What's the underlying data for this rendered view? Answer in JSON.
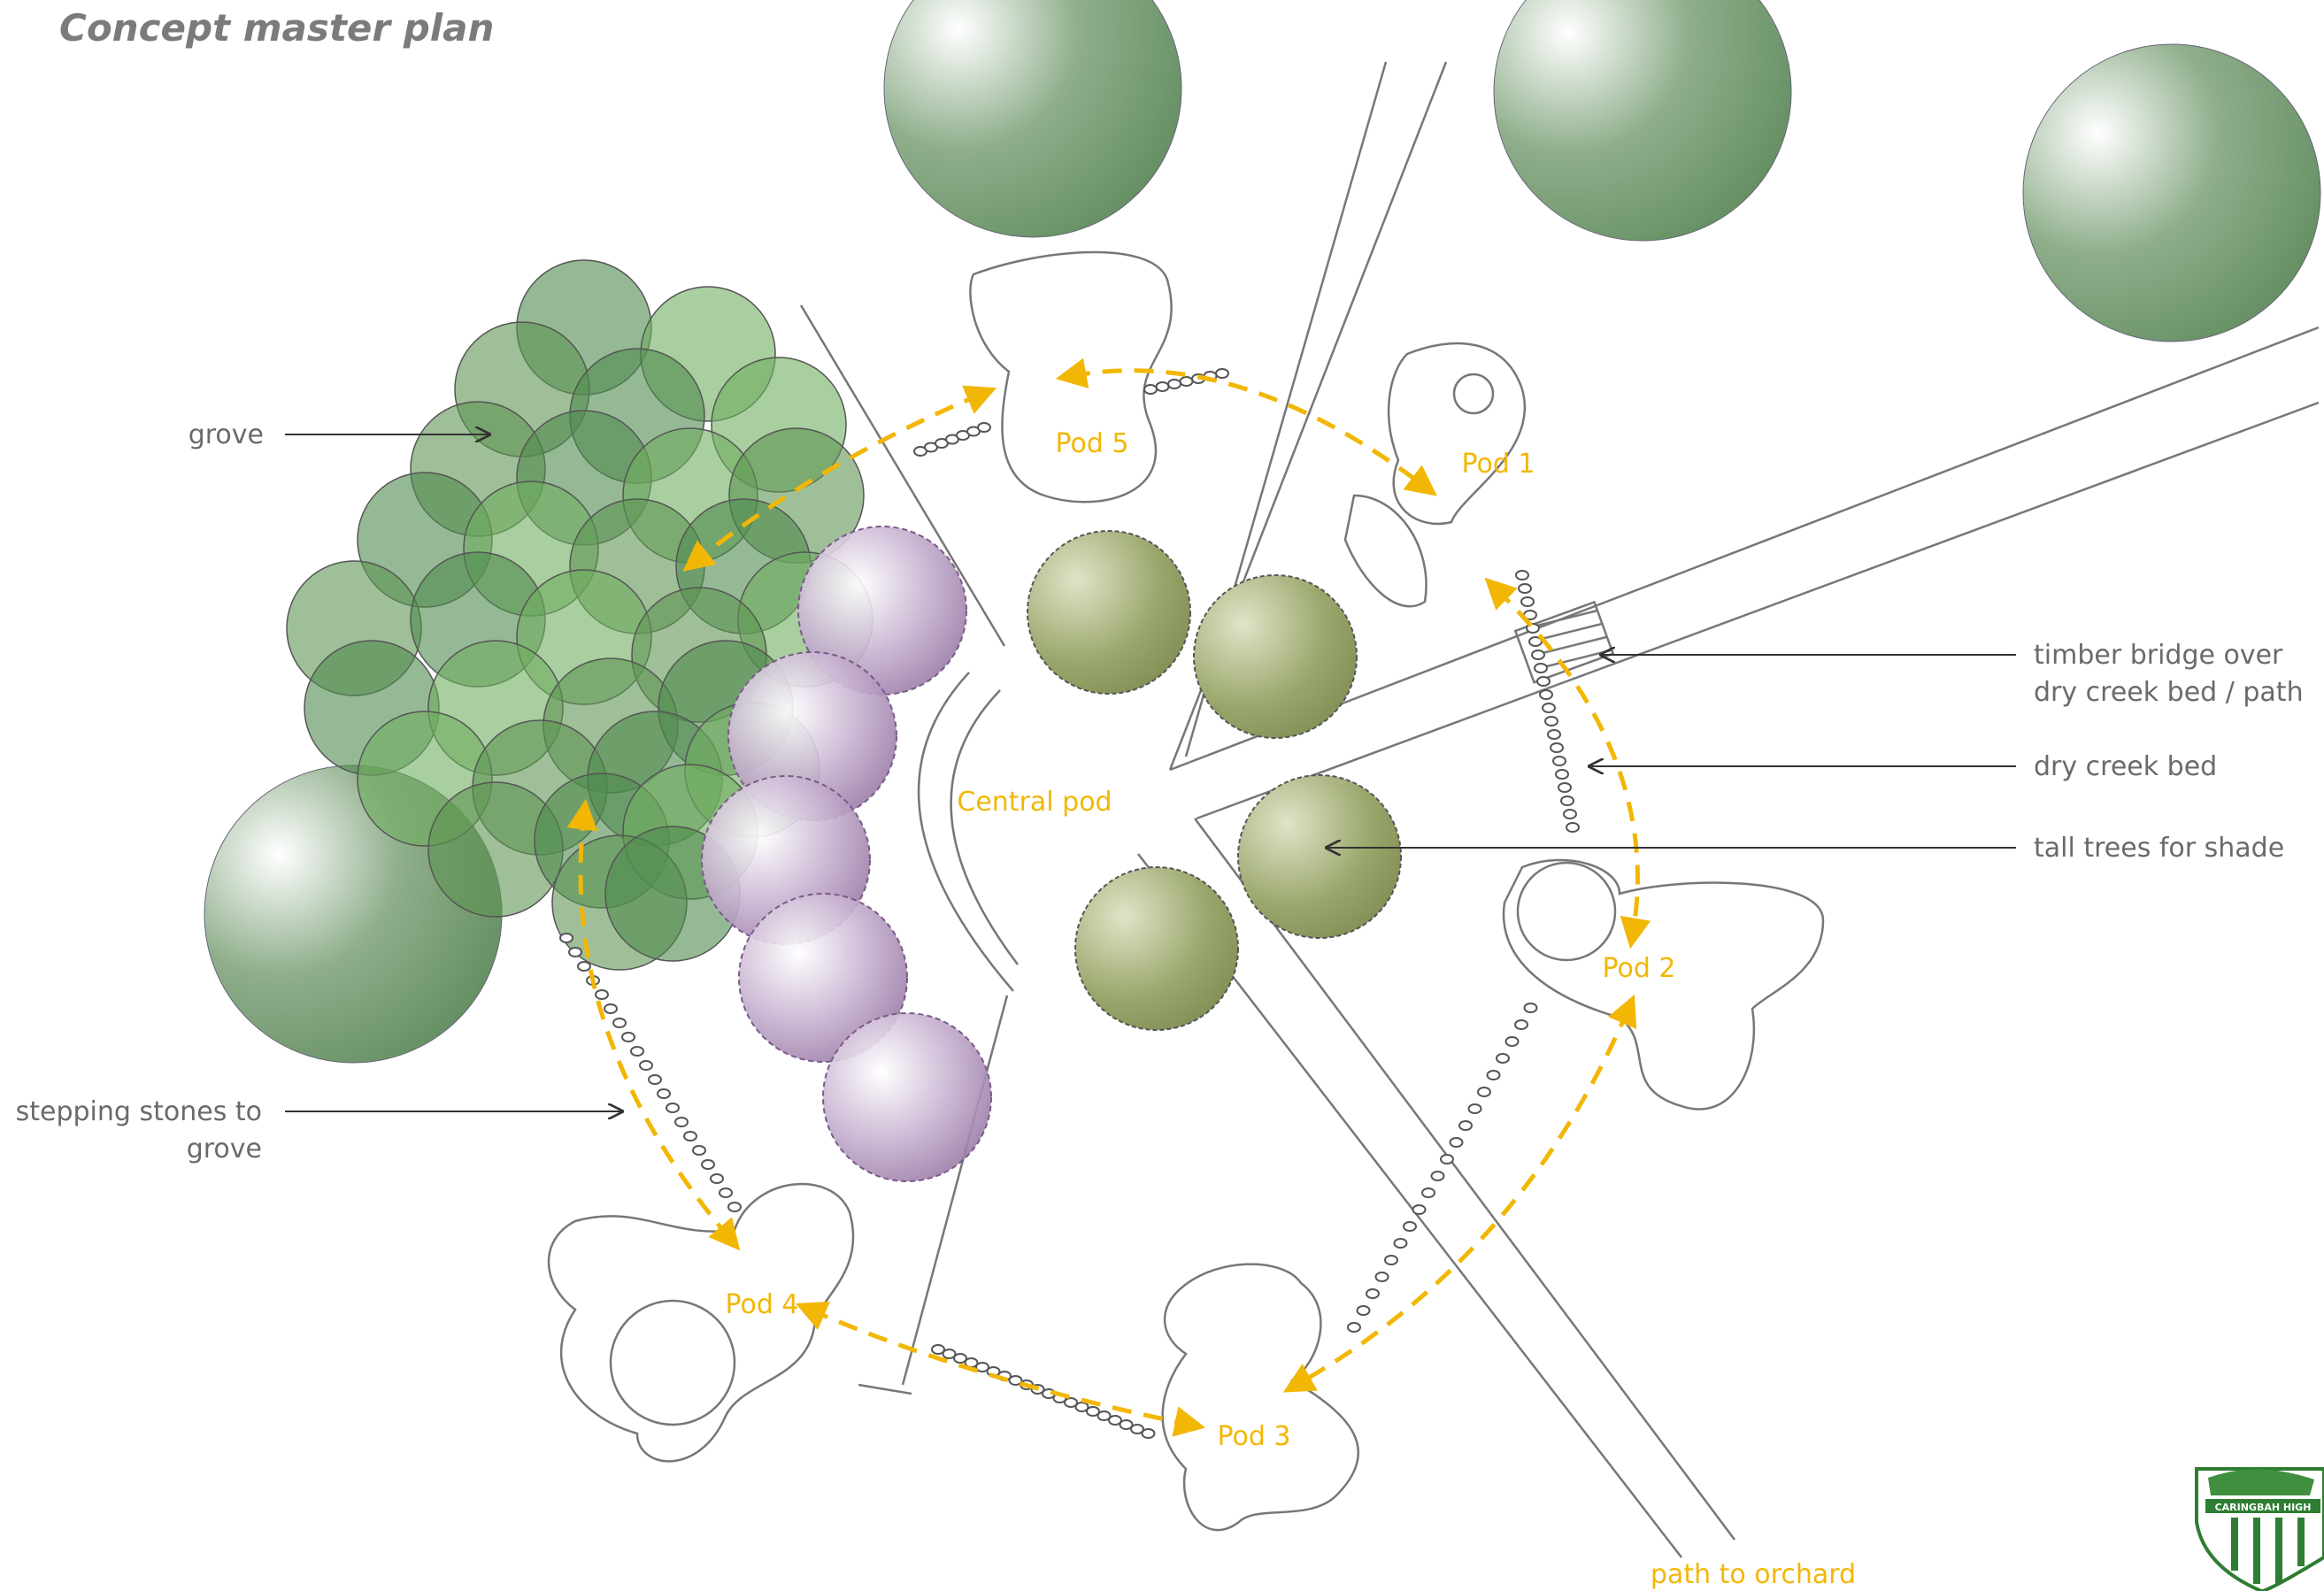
{
  "title": "Concept master plan",
  "annotations": [
    {
      "lines": [
        "grove"
      ]
    },
    {
      "lines": [
        "stepping stones to",
        "grove"
      ]
    },
    {
      "lines": [
        "timber bridge over",
        "dry creek bed / path"
      ]
    },
    {
      "lines": [
        "dry creek bed"
      ]
    },
    {
      "lines": [
        "tall trees for shade"
      ]
    }
  ],
  "pods": [
    "Pod 5",
    "Pod 1",
    "Pod 2",
    "Pod 3",
    "Pod 4"
  ],
  "central": "Central pod",
  "path_label": "path to orchard",
  "logo": "CARINGBAH HIGH"
}
